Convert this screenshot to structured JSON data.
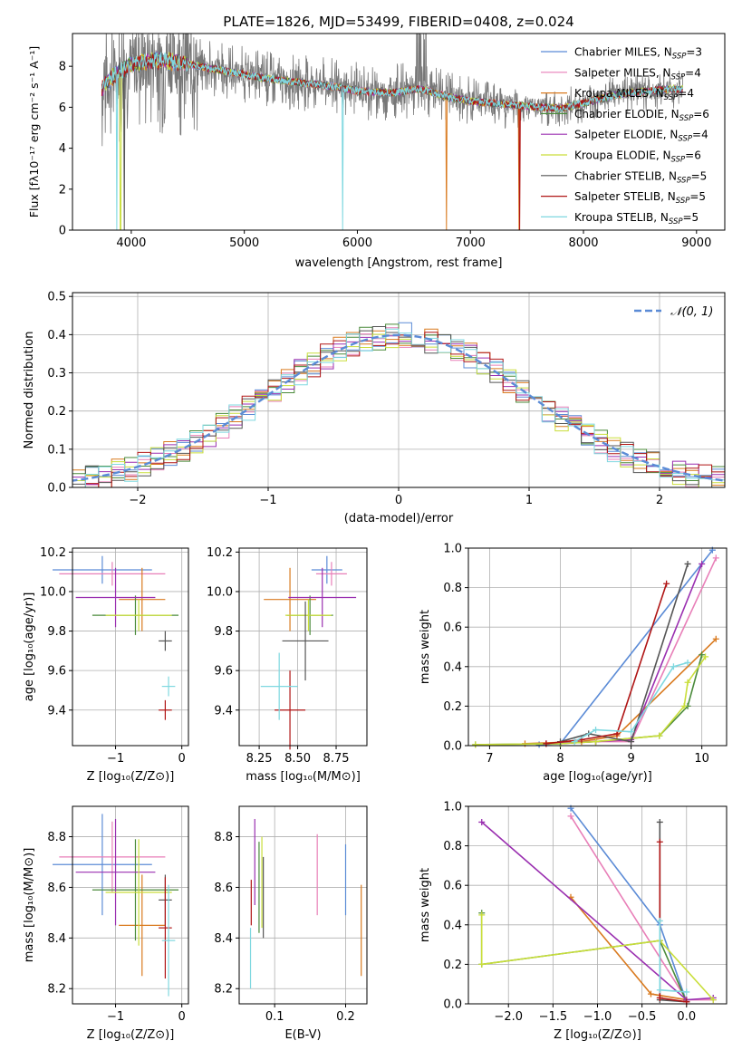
{
  "figure_title": "PLATE=1826, MJD=53499, FIBERID=0408, z=0.024",
  "colors": {
    "chabrier_miles": "#5b8bd6",
    "salpeter_miles": "#e87fb8",
    "kroupa_miles": "#d97a1f",
    "chabrier_elodie": "#4a8a3a",
    "salpeter_elodie": "#9a2fb0",
    "kroupa_elodie": "#c9de3a",
    "chabrier_stelib": "#555555",
    "salpeter_stelib": "#b01515",
    "kroupa_stelib": "#7fd8e0",
    "gaussian": "#5b8bd6",
    "grid": "#b0b0b0"
  },
  "chart_data": [
    {
      "id": "spectrum",
      "type": "line",
      "title": "PLATE=1826, MJD=53499, FIBERID=0408, z=0.024",
      "xlabel": "wavelength [Angstrom, rest frame]",
      "ylabel": "Flux [fλ10⁻¹⁷ erg cm⁻² s⁻¹ A⁻¹]",
      "xlim": [
        3480,
        9250
      ],
      "ylim": [
        0,
        9.6
      ],
      "xticks": [
        "4000",
        "5000",
        "6000",
        "7000",
        "8000",
        "9000"
      ],
      "yticks": [
        "0",
        "2",
        "4",
        "6",
        "8"
      ],
      "grid": false,
      "legend_position": "top-right",
      "legend": [
        "Chabrier MILES, N_SSP=3",
        "Salpeter MILES, N_SSP=4",
        "Kroupa MILES, N_SSP=4",
        "Chabrier ELODIE, N_SSP=6",
        "Salpeter ELODIE, N_SSP=4",
        "Kroupa ELODIE, N_SSP=6",
        "Chabrier STELIB, N_SSP=5",
        "Salpeter STELIB, N_SSP=5",
        "Kroupa STELIB, N_SSP=5"
      ],
      "model_continuum": {
        "x": [
          3750,
          3900,
          4000,
          4200,
          4400,
          4600,
          4800,
          5000,
          5200,
          5500,
          5800,
          6000,
          6300,
          6560,
          6800,
          7000,
          7200,
          7400,
          7600,
          7800,
          8000,
          8200,
          8400,
          8600,
          8800
        ],
        "y": [
          7.0,
          7.8,
          8.1,
          8.3,
          8.2,
          8.0,
          7.8,
          7.6,
          7.4,
          7.2,
          7.0,
          6.8,
          6.7,
          6.9,
          6.5,
          6.3,
          6.2,
          6.1,
          6.0,
          5.95,
          6.2,
          6.5,
          6.7,
          6.8,
          6.9
        ]
      },
      "spectrum_range": [
        3740,
        8880
      ],
      "model_dropouts": [
        {
          "series": "kroupa_stelib",
          "x": 3870
        },
        {
          "series": "kroupa_elodie",
          "x": 3905
        },
        {
          "series": "chabrier_stelib",
          "x": 3940
        },
        {
          "series": "kroupa_stelib",
          "x": 5870
        },
        {
          "series": "kroupa_miles",
          "x": 6790
        },
        {
          "series": "kroupa_miles",
          "x": 7430
        },
        {
          "series": "salpeter_stelib",
          "x": 7435
        }
      ]
    },
    {
      "id": "residuals",
      "type": "line",
      "xlabel": "(data-model)/error",
      "ylabel": "Normed distribution",
      "xlim": [
        -2.5,
        2.5
      ],
      "ylim": [
        0,
        0.51
      ],
      "xticks": [
        "−2",
        "−1",
        "0",
        "1",
        "2"
      ],
      "yticks": [
        "0.0",
        "0.1",
        "0.2",
        "0.3",
        "0.4",
        "0.5"
      ],
      "grid": true,
      "legend_position": "top-right",
      "legend": [
        "𝒩(0, 1)"
      ],
      "histogram_bin_width": 0.1,
      "gaussian": {
        "mean": 0,
        "sigma": 1
      }
    },
    {
      "id": "age_vs_Z",
      "type": "scatter",
      "xlabel": "Z [log₁₀(Z/Z⊙)]",
      "ylabel": "age  [log₁₀(age/yr)]",
      "xlim": [
        -1.65,
        0.1
      ],
      "ylim": [
        9.22,
        10.22
      ],
      "xticks": [
        {
          "v": -1,
          "t": "−1"
        },
        {
          "v": 0,
          "t": "0"
        }
      ],
      "yticks": [
        {
          "v": 9.4,
          "t": "9.4"
        },
        {
          "v": 9.6,
          "t": "9.6"
        },
        {
          "v": 9.8,
          "t": "9.8"
        },
        {
          "v": 10.0,
          "t": "10.0"
        },
        {
          "v": 10.2,
          "t": "10.2"
        }
      ],
      "grid": true,
      "points": [
        {
          "s": "chabrier_miles",
          "x": -1.2,
          "y": 10.11,
          "xerr": 0.75,
          "yerr": 0.07
        },
        {
          "s": "salpeter_miles",
          "x": -1.05,
          "y": 10.09,
          "xerr": 0.8,
          "yerr": 0.06
        },
        {
          "s": "kroupa_miles",
          "x": -0.6,
          "y": 9.96,
          "xerr": 0.35,
          "yerr": 0.16
        },
        {
          "s": "chabrier_elodie",
          "x": -0.7,
          "y": 9.88,
          "xerr": 0.65,
          "yerr": 0.1
        },
        {
          "s": "salpeter_elodie",
          "x": -1.0,
          "y": 9.97,
          "xerr": 0.6,
          "yerr": 0.15
        },
        {
          "s": "kroupa_elodie",
          "x": -0.65,
          "y": 9.88,
          "xerr": 0.5,
          "yerr": 0.08
        },
        {
          "s": "chabrier_stelib",
          "x": -0.25,
          "y": 9.75,
          "xerr": 0.1,
          "yerr": 0.05
        },
        {
          "s": "salpeter_stelib",
          "x": -0.25,
          "y": 9.4,
          "xerr": 0.1,
          "yerr": 0.05
        },
        {
          "s": "kroupa_stelib",
          "x": -0.2,
          "y": 9.52,
          "xerr": 0.1,
          "yerr": 0.05
        }
      ]
    },
    {
      "id": "age_vs_mass",
      "type": "scatter",
      "xlabel": "mass [log₁₀(M/M⊙)]",
      "ylabel": "",
      "xlim": [
        8.12,
        8.95
      ],
      "ylim": [
        9.22,
        10.22
      ],
      "xticks": [
        {
          "v": 8.25,
          "t": "8.25"
        },
        {
          "v": 8.5,
          "t": "8.50"
        },
        {
          "v": 8.75,
          "t": "8.75"
        }
      ],
      "yticks": [
        {
          "v": 9.4,
          "t": "9.4"
        },
        {
          "v": 9.6,
          "t": "9.6"
        },
        {
          "v": 9.8,
          "t": "9.8"
        },
        {
          "v": 10.0,
          "t": "10.0"
        },
        {
          "v": 10.2,
          "t": "10.2"
        }
      ],
      "grid": true,
      "points": [
        {
          "s": "chabrier_miles",
          "x": 8.69,
          "y": 10.11,
          "xerr": 0.1,
          "yerr": 0.07
        },
        {
          "s": "salpeter_miles",
          "x": 8.72,
          "y": 10.09,
          "xerr": 0.1,
          "yerr": 0.06
        },
        {
          "s": "kroupa_miles",
          "x": 8.45,
          "y": 9.96,
          "xerr": 0.17,
          "yerr": 0.16
        },
        {
          "s": "chabrier_elodie",
          "x": 8.58,
          "y": 9.88,
          "xerr": 0.15,
          "yerr": 0.1
        },
        {
          "s": "salpeter_elodie",
          "x": 8.66,
          "y": 9.97,
          "xerr": 0.22,
          "yerr": 0.15
        },
        {
          "s": "kroupa_elodie",
          "x": 8.57,
          "y": 9.88,
          "xerr": 0.15,
          "yerr": 0.08
        },
        {
          "s": "chabrier_stelib",
          "x": 8.55,
          "y": 9.75,
          "xerr": 0.15,
          "yerr": 0.2
        },
        {
          "s": "salpeter_stelib",
          "x": 8.45,
          "y": 9.4,
          "xerr": 0.1,
          "yerr": 0.2
        },
        {
          "s": "kroupa_stelib",
          "x": 8.38,
          "y": 9.52,
          "xerr": 0.12,
          "yerr": 0.17
        }
      ]
    },
    {
      "id": "mass_weight_vs_age",
      "type": "line",
      "xlabel": "age  [log₁₀(age/yr)]",
      "ylabel": "mass weight",
      "xlim": [
        6.7,
        10.35
      ],
      "ylim": [
        0,
        1.0
      ],
      "xticks": [
        {
          "v": 7,
          "t": "7"
        },
        {
          "v": 8,
          "t": "8"
        },
        {
          "v": 9,
          "t": "9"
        },
        {
          "v": 10,
          "t": "10"
        }
      ],
      "yticks": [
        {
          "v": 0,
          "t": "0.0"
        },
        {
          "v": 0.2,
          "t": "0.2"
        },
        {
          "v": 0.4,
          "t": "0.4"
        },
        {
          "v": 0.6,
          "t": "0.6"
        },
        {
          "v": 0.8,
          "t": "0.8"
        },
        {
          "v": 1.0,
          "t": "1.0"
        }
      ],
      "grid": true,
      "series": [
        {
          "s": "chabrier_miles",
          "x": [
            7.7,
            8.0,
            10.15
          ],
          "y": [
            0.005,
            0.01,
            0.99
          ]
        },
        {
          "s": "salpeter_miles",
          "x": [
            7.8,
            8.5,
            9.0,
            10.2
          ],
          "y": [
            0.01,
            0.02,
            0.02,
            0.95
          ]
        },
        {
          "s": "kroupa_miles",
          "x": [
            7.5,
            8.3,
            8.8,
            10.2
          ],
          "y": [
            0.01,
            0.02,
            0.05,
            0.54
          ]
        },
        {
          "s": "chabrier_elodie",
          "x": [
            6.8,
            8.0,
            8.5,
            9.4,
            9.8,
            10.0
          ],
          "y": [
            0.005,
            0.01,
            0.02,
            0.05,
            0.2,
            0.46
          ]
        },
        {
          "s": "salpeter_elodie",
          "x": [
            7.8,
            8.5,
            9.0,
            10.0
          ],
          "y": [
            0.01,
            0.02,
            0.03,
            0.92
          ]
        },
        {
          "s": "kroupa_elodie",
          "x": [
            6.8,
            8.0,
            8.5,
            9.4,
            9.75,
            9.8,
            10.05
          ],
          "y": [
            0.005,
            0.01,
            0.02,
            0.05,
            0.2,
            0.32,
            0.45
          ]
        },
        {
          "s": "chabrier_stelib",
          "x": [
            8.0,
            8.4,
            9.0,
            9.8
          ],
          "y": [
            0.02,
            0.06,
            0.02,
            0.92
          ]
        },
        {
          "s": "salpeter_stelib",
          "x": [
            7.8,
            8.3,
            8.8,
            9.5
          ],
          "y": [
            0.01,
            0.03,
            0.06,
            0.82
          ]
        },
        {
          "s": "kroupa_stelib",
          "x": [
            8.2,
            8.5,
            9.0,
            9.6,
            9.8
          ],
          "y": [
            0.02,
            0.08,
            0.07,
            0.4,
            0.42
          ]
        }
      ]
    },
    {
      "id": "mass_vs_Z",
      "type": "scatter",
      "xlabel": "Z [log₁₀(Z/Z⊙)]",
      "ylabel": "mass [log₁₀(M/M⊙)]",
      "xlim": [
        -1.65,
        0.1
      ],
      "ylim": [
        8.14,
        8.92
      ],
      "xticks": [
        {
          "v": -1,
          "t": "−1"
        },
        {
          "v": 0,
          "t": "0"
        }
      ],
      "yticks": [
        {
          "v": 8.2,
          "t": "8.2"
        },
        {
          "v": 8.4,
          "t": "8.4"
        },
        {
          "v": 8.6,
          "t": "8.6"
        },
        {
          "v": 8.8,
          "t": "8.8"
        }
      ],
      "grid": true,
      "points": [
        {
          "s": "chabrier_miles",
          "x": -1.2,
          "y": 8.69,
          "xerr": 0.75,
          "yerr": 0.2
        },
        {
          "s": "salpeter_miles",
          "x": -1.05,
          "y": 8.72,
          "xerr": 0.8,
          "yerr": 0.14
        },
        {
          "s": "kroupa_miles",
          "x": -0.6,
          "y": 8.45,
          "xerr": 0.35,
          "yerr": 0.2
        },
        {
          "s": "chabrier_elodie",
          "x": -0.7,
          "y": 8.59,
          "xerr": 0.65,
          "yerr": 0.2
        },
        {
          "s": "salpeter_elodie",
          "x": -1.0,
          "y": 8.66,
          "xerr": 0.6,
          "yerr": 0.21
        },
        {
          "s": "kroupa_elodie",
          "x": -0.65,
          "y": 8.58,
          "xerr": 0.5,
          "yerr": 0.21
        },
        {
          "s": "chabrier_stelib",
          "x": -0.25,
          "y": 8.55,
          "xerr": 0.1,
          "yerr": 0.1
        },
        {
          "s": "salpeter_stelib",
          "x": -0.25,
          "y": 8.44,
          "xerr": 0.1,
          "yerr": 0.2
        },
        {
          "s": "kroupa_stelib",
          "x": -0.2,
          "y": 8.39,
          "xerr": 0.1,
          "yerr": 0.22
        }
      ]
    },
    {
      "id": "mass_vs_ebv",
      "type": "scatter",
      "xlabel": "E(B-V)",
      "ylabel": "",
      "xlim": [
        0.05,
        0.23
      ],
      "ylim": [
        8.14,
        8.92
      ],
      "xticks": [
        {
          "v": 0.1,
          "t": "0.1"
        },
        {
          "v": 0.2,
          "t": "0.2"
        }
      ],
      "yticks": [
        {
          "v": 8.2,
          "t": "8.2"
        },
        {
          "v": 8.4,
          "t": "8.4"
        },
        {
          "v": 8.6,
          "t": "8.6"
        },
        {
          "v": 8.8,
          "t": "8.8"
        }
      ],
      "grid": true,
      "points": [
        {
          "s": "chabrier_miles",
          "x": 0.2,
          "y": 8.63,
          "xerr": 0,
          "yerr": 0.14
        },
        {
          "s": "salpeter_miles",
          "x": 0.16,
          "y": 8.65,
          "xerr": 0,
          "yerr": 0.16
        },
        {
          "s": "kroupa_miles",
          "x": 0.222,
          "y": 8.43,
          "xerr": 0,
          "yerr": 0.18
        },
        {
          "s": "chabrier_elodie",
          "x": 0.078,
          "y": 8.6,
          "xerr": 0,
          "yerr": 0.18
        },
        {
          "s": "salpeter_elodie",
          "x": 0.072,
          "y": 8.7,
          "xerr": 0,
          "yerr": 0.17
        },
        {
          "s": "kroupa_elodie",
          "x": 0.082,
          "y": 8.62,
          "xerr": 0,
          "yerr": 0.18
        },
        {
          "s": "chabrier_stelib",
          "x": 0.084,
          "y": 8.56,
          "xerr": 0,
          "yerr": 0.16
        },
        {
          "s": "salpeter_stelib",
          "x": 0.067,
          "y": 8.54,
          "xerr": 0,
          "yerr": 0.09
        },
        {
          "s": "kroupa_stelib",
          "x": 0.066,
          "y": 8.32,
          "xerr": 0,
          "yerr": 0.12
        }
      ]
    },
    {
      "id": "mass_weight_vs_Z",
      "type": "line",
      "xlabel": "Z [log₁₀(Z/Z⊙)]",
      "ylabel": "mass weight",
      "xlim": [
        -2.45,
        0.45
      ],
      "ylim": [
        0,
        1.0
      ],
      "xticks": [
        {
          "v": -2.0,
          "t": "−2.0"
        },
        {
          "v": -1.5,
          "t": "−1.5"
        },
        {
          "v": -1.0,
          "t": "−1.0"
        },
        {
          "v": -0.5,
          "t": "−0.5"
        },
        {
          "v": 0.0,
          "t": "0.0"
        }
      ],
      "yticks": [
        {
          "v": 0,
          "t": "0.0"
        },
        {
          "v": 0.2,
          "t": "0.2"
        },
        {
          "v": 0.4,
          "t": "0.4"
        },
        {
          "v": 0.6,
          "t": "0.6"
        },
        {
          "v": 0.8,
          "t": "0.8"
        },
        {
          "v": 1.0,
          "t": "1.0"
        }
      ],
      "grid": true,
      "series": [
        {
          "s": "chabrier_miles",
          "x": [
            -1.3,
            -0.3,
            0.0
          ],
          "y": [
            0.99,
            0.4,
            0.01
          ]
        },
        {
          "s": "salpeter_miles",
          "x": [
            -1.3,
            0.0,
            0.3
          ],
          "y": [
            0.95,
            0.02,
            0.02
          ]
        },
        {
          "s": "kroupa_miles",
          "x": [
            -1.3,
            -0.4,
            0.0
          ],
          "y": [
            0.54,
            0.05,
            0.02
          ]
        },
        {
          "s": "chabrier_elodie",
          "x": [
            -2.3,
            -2.3,
            -0.3,
            0.0
          ],
          "y": [
            0.46,
            0.2,
            0.32,
            0.01
          ]
        },
        {
          "s": "salpeter_elodie",
          "x": [
            -2.3,
            0.0,
            0.3
          ],
          "y": [
            0.92,
            0.02,
            0.03
          ]
        },
        {
          "s": "kroupa_elodie",
          "x": [
            -2.3,
            -2.3,
            -0.3,
            0.3
          ],
          "y": [
            0.45,
            0.2,
            0.32,
            0.02
          ]
        },
        {
          "s": "chabrier_stelib",
          "x": [
            -0.3,
            -0.3,
            0.0
          ],
          "y": [
            0.92,
            0.02,
            0.01
          ]
        },
        {
          "s": "salpeter_stelib",
          "x": [
            -0.3,
            -0.3,
            0.0
          ],
          "y": [
            0.82,
            0.03,
            0.01
          ]
        },
        {
          "s": "kroupa_stelib",
          "x": [
            -0.3,
            -0.3,
            0.0
          ],
          "y": [
            0.42,
            0.07,
            0.06
          ]
        }
      ]
    }
  ]
}
